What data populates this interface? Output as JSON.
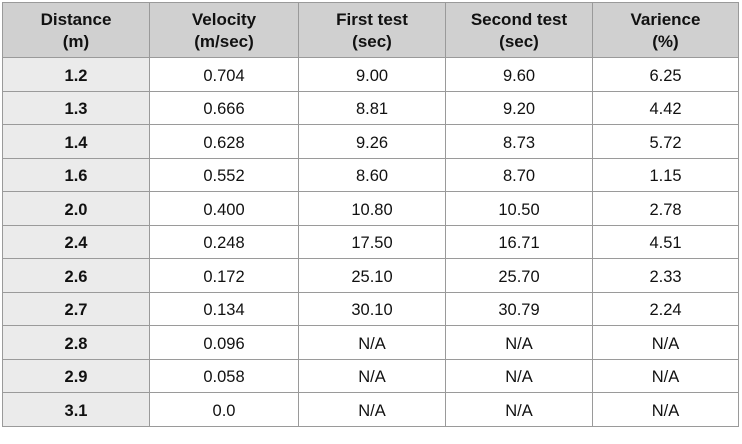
{
  "table": {
    "headers": [
      {
        "line1": "Distance",
        "line2": "(m)"
      },
      {
        "line1": "Velocity",
        "line2": "(m/sec)"
      },
      {
        "line1": "First test",
        "line2": "(sec)"
      },
      {
        "line1": "Second test",
        "line2": "(sec)"
      },
      {
        "line1": "Varience",
        "line2": "(%)"
      }
    ],
    "rows": [
      [
        "1.2",
        "0.704",
        "9.00",
        "9.60",
        "6.25"
      ],
      [
        "1.3",
        "0.666",
        "8.81",
        "9.20",
        "4.42"
      ],
      [
        "1.4",
        "0.628",
        "9.26",
        "8.73",
        "5.72"
      ],
      [
        "1.6",
        "0.552",
        "8.60",
        "8.70",
        "1.15"
      ],
      [
        "2.0",
        "0.400",
        "10.80",
        "10.50",
        "2.78"
      ],
      [
        "2.4",
        "0.248",
        "17.50",
        "16.71",
        "4.51"
      ],
      [
        "2.6",
        "0.172",
        "25.10",
        "25.70",
        "2.33"
      ],
      [
        "2.7",
        "0.134",
        "30.10",
        "30.79",
        "2.24"
      ],
      [
        "2.8",
        "0.096",
        "N/A",
        "N/A",
        "N/A"
      ],
      [
        "2.9",
        "0.058",
        "N/A",
        "N/A",
        "N/A"
      ],
      [
        "3.1",
        "0.0",
        "N/A",
        "N/A",
        "N/A"
      ]
    ]
  },
  "colors": {
    "header_bg": "#d0d0d0",
    "first_col_bg": "#ebebeb",
    "border": "#9a9a9a"
  }
}
